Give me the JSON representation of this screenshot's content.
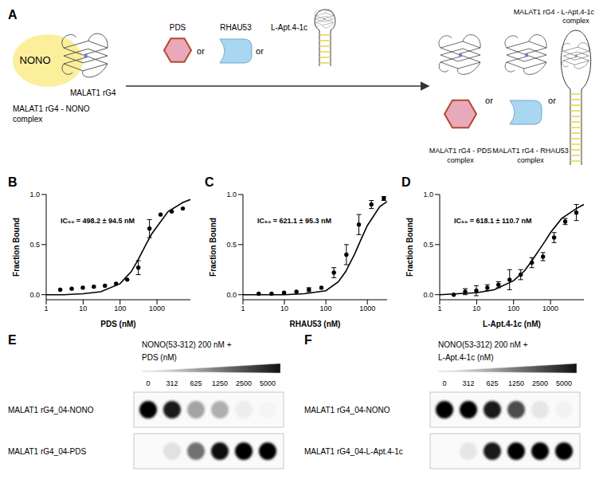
{
  "diagram": {
    "label": "A",
    "nono": "NONO",
    "rg4": "MALAT1 rG4",
    "start_complex": [
      "MALAT1 rG4 - NONO",
      "complex"
    ],
    "reagents": [
      "PDS",
      "RHAU53",
      "L-Apt.4-1c"
    ],
    "or": "or",
    "products": [
      [
        "MALAT1 rG4 - PDS",
        "complex"
      ],
      [
        "MALAT1 rG4 - RHAU53",
        "complex"
      ],
      [
        "MALAT1 rG4 - L-Apt.4-1c",
        "complex"
      ]
    ]
  },
  "chart_data": [
    {
      "panel": "B",
      "type": "scatter",
      "x_label": "PDS (nM)",
      "y_label": "Fraction Bound",
      "annotation": "IC₅₀ = 498.2 ± 94.5 nM",
      "log": "x",
      "xlim": [
        1,
        8000
      ],
      "xticks": [
        1,
        10,
        100,
        1000
      ],
      "ylim": [
        -0.05,
        1.0
      ],
      "yticks": [
        {
          "value": 0,
          "label": "0.0"
        },
        {
          "value": 0.5,
          "label": "0.5"
        },
        {
          "value": 1,
          "label": "1.0"
        }
      ],
      "series": [
        {
          "type": "line",
          "color": "#000000",
          "line_style": "solid",
          "x": [
            1,
            3,
            10,
            30,
            100,
            200,
            300,
            500,
            700,
            1000,
            2000,
            5000,
            8000
          ],
          "values": [
            0.0,
            0.0,
            0.01,
            0.03,
            0.11,
            0.23,
            0.34,
            0.5,
            0.6,
            0.68,
            0.83,
            0.92,
            0.95
          ]
        },
        {
          "type": "scatter",
          "color": "#000000",
          "marker": "circle",
          "x": [
            2.4,
            4.9,
            9.8,
            19.5,
            39,
            78,
            156,
            312,
            625,
            1250,
            2500,
            5000
          ],
          "values": [
            0.05,
            0.06,
            0.07,
            0.08,
            0.09,
            0.11,
            0.15,
            0.27,
            0.66,
            0.8,
            0.83,
            0.86
          ],
          "errors": [
            0,
            0,
            0,
            0,
            0,
            0,
            0,
            0.07,
            0.09,
            0,
            0,
            0
          ]
        }
      ]
    },
    {
      "panel": "C",
      "type": "scatter",
      "x_label": "RHAU53 (nM)",
      "y_label": "Fraction Bound",
      "annotation": "IC₅₀ = 621.1 ± 95.3 nM",
      "log": "x",
      "xlim": [
        1,
        3000
      ],
      "xticks": [
        1,
        10,
        100,
        1000
      ],
      "ylim": [
        -0.05,
        1.0
      ],
      "yticks": [
        {
          "value": 0,
          "label": "0.0"
        },
        {
          "value": 0.5,
          "label": "0.5"
        },
        {
          "value": 1,
          "label": "1.0"
        }
      ],
      "series": [
        {
          "type": "line",
          "color": "#000000",
          "line_style": "solid",
          "x": [
            1,
            10,
            30,
            100,
            200,
            300,
            500,
            700,
            1000,
            2000,
            3000
          ],
          "values": [
            0.0,
            0.0,
            0.01,
            0.04,
            0.13,
            0.23,
            0.41,
            0.55,
            0.69,
            0.88,
            0.93
          ]
        },
        {
          "type": "scatter",
          "color": "#000000",
          "marker": "circle",
          "x": [
            2.4,
            4.9,
            9.8,
            19.5,
            39,
            78,
            156,
            312,
            625,
            1250,
            2500
          ],
          "values": [
            0.01,
            0.01,
            0.02,
            0.03,
            0.05,
            0.07,
            0.22,
            0.4,
            0.7,
            0.9,
            0.96
          ],
          "errors": [
            0,
            0,
            0,
            0,
            0.02,
            0,
            0.05,
            0.1,
            0.1,
            0.04,
            0.02
          ]
        }
      ]
    },
    {
      "panel": "D",
      "type": "scatter",
      "x_label": "L-Apt.4-1c (nM)",
      "y_label": "Fraction Bound",
      "annotation": "IC₅₀ = 618.1 ± 110.7 nM",
      "log": "x",
      "xlim": [
        1,
        8000
      ],
      "xticks": [
        1,
        10,
        100,
        1000
      ],
      "ylim": [
        -0.05,
        1.0
      ],
      "yticks": [
        {
          "value": 0,
          "label": "0.0"
        },
        {
          "value": 0.5,
          "label": "0.5"
        },
        {
          "value": 1,
          "label": "1.0"
        }
      ],
      "series": [
        {
          "type": "line",
          "color": "#000000",
          "line_style": "solid",
          "x": [
            1,
            3,
            10,
            30,
            100,
            200,
            300,
            500,
            700,
            1000,
            2000,
            5000,
            8000
          ],
          "values": [
            0.0,
            0.01,
            0.02,
            0.05,
            0.14,
            0.24,
            0.33,
            0.45,
            0.53,
            0.62,
            0.76,
            0.86,
            0.9
          ]
        },
        {
          "type": "scatter",
          "color": "#000000",
          "marker": "circle",
          "x": [
            2.4,
            4.9,
            9.8,
            19.5,
            39,
            78,
            156,
            312,
            625,
            1250,
            2500,
            5000
          ],
          "values": [
            0.0,
            0.03,
            0.04,
            0.07,
            0.1,
            0.15,
            0.2,
            0.32,
            0.38,
            0.57,
            0.73,
            0.82
          ],
          "errors": [
            0,
            0.03,
            0.05,
            0.03,
            0.03,
            0.1,
            0.05,
            0.05,
            0.04,
            0.05,
            0.03,
            0.08
          ]
        }
      ]
    }
  ],
  "blots": [
    {
      "label": "E",
      "header": "NONO(53-312) 200 nM +",
      "reagent": "PDS (nM)",
      "concentrations": [
        0,
        312,
        625,
        1250,
        2500,
        5000
      ],
      "rows": [
        {
          "label": "MALAT1 rG4_04-NONO",
          "intensity": [
            1,
            0.9,
            0.35,
            0.3,
            0.05,
            0.02
          ]
        },
        {
          "label": "MALAT1 rG4_04-PDS",
          "intensity": [
            0,
            0.1,
            0.55,
            0.95,
            1,
            1
          ]
        }
      ]
    },
    {
      "label": "F",
      "header": "NONO(53-312) 200 nM +",
      "reagent": "L-Apt.4-1c (nM)",
      "concentrations": [
        0,
        312,
        625,
        1250,
        2500,
        5000
      ],
      "rows": [
        {
          "label": "MALAT1 rG4_04-NONO",
          "intensity": [
            1,
            1,
            0.9,
            0.7,
            0.08,
            0.03
          ]
        },
        {
          "label": "MALAT1 rG4_04-L-Apt.4-1c",
          "intensity": [
            0,
            0.08,
            0.9,
            1,
            1,
            1
          ]
        }
      ]
    }
  ]
}
